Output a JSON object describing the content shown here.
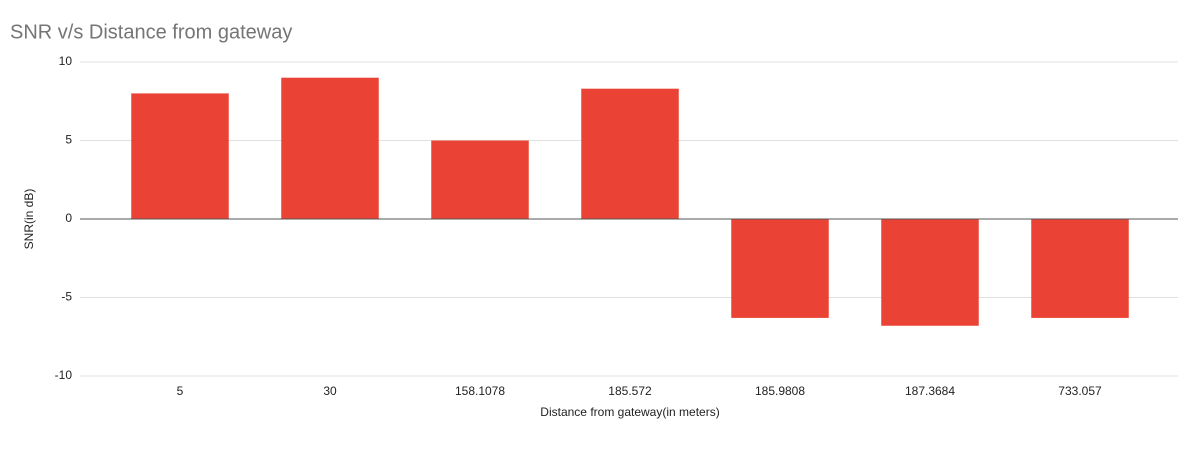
{
  "chart_data": {
    "type": "bar",
    "title": "SNR v/s Distance from gateway",
    "x_label": "Distance from gateway(in meters)",
    "y_label": "SNR(in dB)",
    "categories": [
      "5",
      "30",
      "158.1078",
      "185.572",
      "185.9808",
      "187.3684",
      "733.057"
    ],
    "values": [
      8,
      9,
      5,
      8.3,
      -6.3,
      -6.8,
      -6.3
    ],
    "color": "#ea4335",
    "ylim": [
      -10,
      10
    ],
    "yticks": [
      -10,
      -5,
      0,
      5,
      10
    ],
    "grid": true
  }
}
